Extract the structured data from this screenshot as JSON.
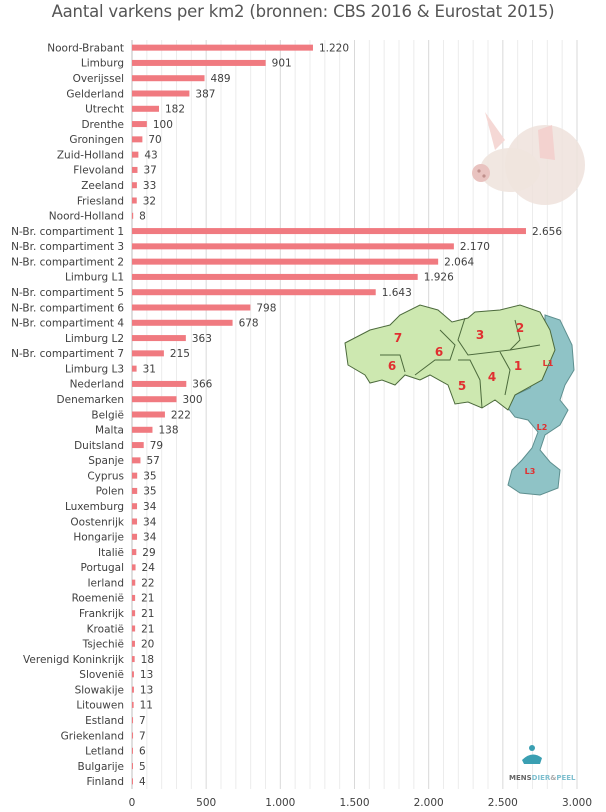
{
  "chart_data": {
    "type": "bar",
    "orientation": "horizontal",
    "title": "Aantal varkens per km2 (bronnen: CBS 2016 & Eurostat 2015)",
    "xlabel": "",
    "ylabel": "",
    "xlim": [
      0,
      3000
    ],
    "x_ticks": [
      "0",
      "500",
      "1.000",
      "1.500",
      "2.000",
      "2.500",
      "3.000"
    ],
    "x_tick_values": [
      0,
      500,
      1000,
      1500,
      2000,
      2500,
      3000
    ],
    "grid": true,
    "bar_color": "#f07a80",
    "categories": [
      "Noord-Brabant",
      "Limburg",
      "Overijssel",
      "Gelderland",
      "Utrecht",
      "Drenthe",
      "Groningen",
      "Zuid-Holland",
      "Flevoland",
      "Zeeland",
      "Friesland",
      "Noord-Holland",
      "N-Br. compartiment  1",
      "N-Br. compartiment  3",
      "N-Br. compartiment  2",
      "Limburg L1",
      "N-Br. compartiment  5",
      "N-Br. compartiment  6",
      "N-Br. compartiment  4",
      "Limburg L2",
      "N-Br. compartiment  7",
      "Limburg L3",
      "Nederland",
      "Denemarken",
      "België",
      "Malta",
      "Duitsland",
      "Spanje",
      "Cyprus",
      "Polen",
      "Luxemburg",
      "Oostenrijk",
      "Hongarije",
      "Italië",
      "Portugal",
      "Ierland",
      "Roemenië",
      "Frankrijk",
      "Kroatië",
      "Tsjechië",
      "Verenigd Koninkrijk",
      "Slovenië",
      "Slowakije",
      "Litouwen",
      "Estland",
      "Griekenland",
      "Letland",
      "Bulgarije",
      "Finland"
    ],
    "values": [
      1220,
      901,
      489,
      387,
      182,
      100,
      70,
      43,
      37,
      33,
      32,
      8,
      2656,
      2170,
      2064,
      1926,
      1643,
      798,
      678,
      363,
      215,
      31,
      366,
      300,
      222,
      138,
      79,
      57,
      35,
      35,
      34,
      34,
      34,
      29,
      24,
      22,
      21,
      21,
      21,
      20,
      18,
      13,
      13,
      11,
      7,
      7,
      6,
      5,
      4
    ],
    "value_labels": [
      "1.220",
      "901",
      "489",
      "387",
      "182",
      "100",
      "70",
      "43",
      "37",
      "33",
      "32",
      "8",
      "2.656",
      "2.170",
      "2.064",
      "1.926",
      "1.643",
      "798",
      "678",
      "363",
      "215",
      "31",
      "366",
      "300",
      "222",
      "138",
      "79",
      "57",
      "35",
      "35",
      "34",
      "34",
      "34",
      "29",
      "24",
      "22",
      "21",
      "21",
      "21",
      "20",
      "18",
      "13",
      "13",
      "11",
      "7",
      "7",
      "6",
      "5",
      "4"
    ]
  },
  "map": {
    "region_labels": [
      "7",
      "6",
      "6",
      "3",
      "2",
      "5",
      "4",
      "1",
      "L1",
      "L2",
      "L3"
    ],
    "colors": {
      "brabant": "#cde8b0",
      "limburg": "#8fc3c6",
      "label": "#e03030"
    }
  },
  "logo": {
    "text_a": "MENS",
    "text_b": "DIER",
    "text_c": "&",
    "text_d": "PEEL"
  }
}
